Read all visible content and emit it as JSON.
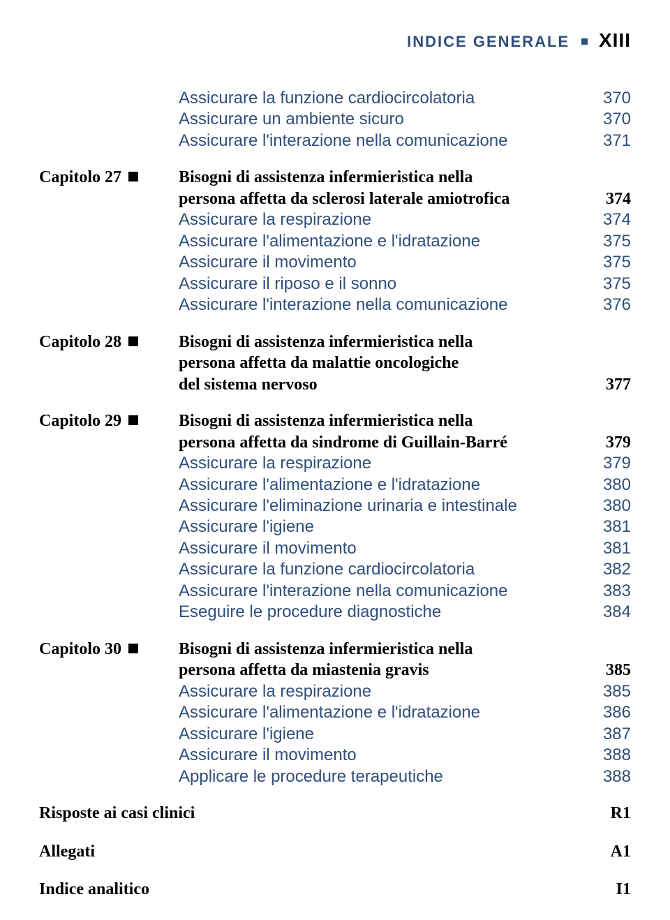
{
  "header": {
    "title": "INDICE GENERALE",
    "page_roman": "XIII"
  },
  "colors": {
    "accent": "#2f4f7a",
    "text": "#000000",
    "background": "#ffffff"
  },
  "pre_block_subs": [
    {
      "text": "Assicurare la funzione cardiocircolatoria",
      "page": "370"
    },
    {
      "text": "Assicurare un ambiente sicuro",
      "page": "370"
    },
    {
      "text": "Assicurare l'interazione nella comunicazione",
      "page": "371"
    }
  ],
  "chapters": [
    {
      "label": "Capitolo 27",
      "title_lines": [
        "Bisogni di assistenza infermieristica nella",
        "persona affetta da sclerosi laterale amiotrofica"
      ],
      "page": "374",
      "subs": [
        {
          "text": "Assicurare la respirazione",
          "page": "374"
        },
        {
          "text": "Assicurare l'alimentazione e l'idratazione",
          "page": "375"
        },
        {
          "text": "Assicurare il movimento",
          "page": "375"
        },
        {
          "text": "Assicurare il riposo e il sonno",
          "page": "375"
        },
        {
          "text": "Assicurare l'interazione nella comunicazione",
          "page": "376"
        }
      ]
    },
    {
      "label": "Capitolo 28",
      "title_lines": [
        "Bisogni di assistenza infermieristica nella",
        "persona affetta da malattie oncologiche",
        "del sistema nervoso"
      ],
      "page": "377",
      "subs": []
    },
    {
      "label": "Capitolo 29",
      "title_lines": [
        "Bisogni di assistenza infermieristica nella",
        "persona affetta da sindrome di Guillain-Barré"
      ],
      "page": "379",
      "subs": [
        {
          "text": "Assicurare la respirazione",
          "page": "379"
        },
        {
          "text": "Assicurare l'alimentazione e l'idratazione",
          "page": "380"
        },
        {
          "text": "Assicurare l'eliminazione urinaria e intestinale",
          "page": "380"
        },
        {
          "text": "Assicurare l'igiene",
          "page": "381"
        },
        {
          "text": "Assicurare il movimento",
          "page": "381"
        },
        {
          "text": "Assicurare la funzione cardiocircolatoria",
          "page": "382"
        },
        {
          "text": "Assicurare l'interazione nella comunicazione",
          "page": "383"
        },
        {
          "text": "Eseguire le procedure diagnostiche",
          "page": "384"
        }
      ]
    },
    {
      "label": "Capitolo 30",
      "title_lines": [
        "Bisogni di assistenza infermieristica nella",
        "persona affetta da miastenia gravis"
      ],
      "page": "385",
      "subs": [
        {
          "text": "Assicurare la respirazione",
          "page": "385"
        },
        {
          "text": "Assicurare l'alimentazione e l'idratazione",
          "page": "386"
        },
        {
          "text": "Assicurare l'igiene",
          "page": "387"
        },
        {
          "text": "Assicurare il movimento",
          "page": "388"
        },
        {
          "text": "Applicare le procedure terapeutiche",
          "page": "388"
        }
      ]
    }
  ],
  "end_entries": [
    {
      "text": "Risposte ai casi clinici",
      "page": "R1"
    },
    {
      "text": "Allegati",
      "page": "A1"
    },
    {
      "text": "Indice analitico",
      "page": "I1"
    }
  ]
}
